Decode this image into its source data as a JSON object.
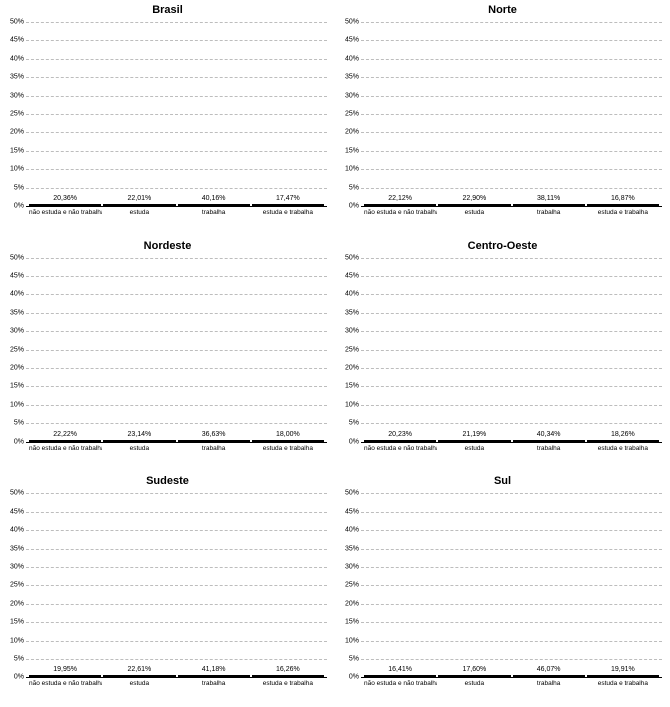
{
  "global": {
    "bar_color": "#2e9968",
    "bar_border": "#000000",
    "background": "#ffffff",
    "grid_color": "#bdbdbd",
    "categories": [
      "não estuda e não trabalha",
      "estuda",
      "trabalha",
      "estuda e trabalha"
    ],
    "ylim": [
      0,
      50
    ],
    "ytick_step": 5,
    "ytick_suffix": "%",
    "value_suffix": "%",
    "decimal_sep": ",",
    "bar_width": 0.98,
    "title_fontsize": 11,
    "label_fontsize": 7
  },
  "panels": [
    {
      "title": "Brasil",
      "values": [
        20.36,
        22.01,
        40.16,
        17.47
      ]
    },
    {
      "title": "Norte",
      "values": [
        22.12,
        22.9,
        38.11,
        16.87
      ]
    },
    {
      "title": "Nordeste",
      "values": [
        22.22,
        23.14,
        36.63,
        18.0
      ]
    },
    {
      "title": "Centro-Oeste",
      "values": [
        20.23,
        21.19,
        40.34,
        18.26
      ]
    },
    {
      "title": "Sudeste",
      "values": [
        19.95,
        22.61,
        41.18,
        16.26
      ]
    },
    {
      "title": "Sul",
      "values": [
        16.41,
        17.6,
        46.07,
        19.91
      ]
    }
  ]
}
